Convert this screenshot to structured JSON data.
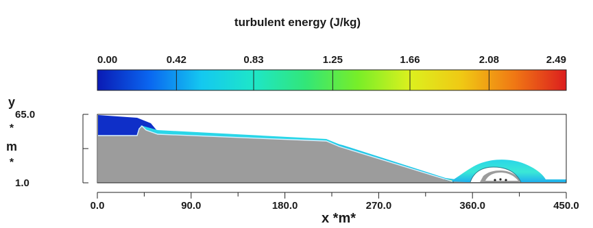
{
  "chart_data": {
    "type": "heatmap",
    "title": "turbulent energy (J/kg)",
    "xlabel": "x *m*",
    "ylabel": "y * m *",
    "ylabel_glyphs": [
      "y",
      "*",
      "m",
      "*"
    ],
    "xlim": [
      0.0,
      450.0
    ],
    "ylim": [
      1.0,
      65.0
    ],
    "x_ticks": [
      0.0,
      90.0,
      180.0,
      270.0,
      360.0,
      450.0
    ],
    "x_tick_labels": [
      "0.0",
      "90.0",
      "180.0",
      "270.0",
      "360.0",
      "450.0"
    ],
    "y_ticks": [
      1.0,
      65.0
    ],
    "y_tick_labels": [
      "1.0",
      "65.0"
    ],
    "colorbar": {
      "min": 0.0,
      "max": 2.49,
      "ticks": [
        0.0,
        0.42,
        0.83,
        1.25,
        1.66,
        2.08,
        2.49
      ],
      "tick_labels": [
        "0.00",
        "0.42",
        "0.83",
        "1.25",
        "1.66",
        "2.08",
        "2.49"
      ],
      "colors": [
        "#0a1ab4",
        "#0a66f0",
        "#14c8f0",
        "#1ee6c8",
        "#32e678",
        "#78ee28",
        "#dcf01e",
        "#f0c814",
        "#f07814",
        "#dc1e1e"
      ]
    },
    "colors": {
      "solid": "#9c9c9c",
      "low": "#0f2fc8",
      "mid": "#2ad6e8",
      "high": "#e6f02a"
    },
    "grid": false,
    "legend": "top"
  }
}
